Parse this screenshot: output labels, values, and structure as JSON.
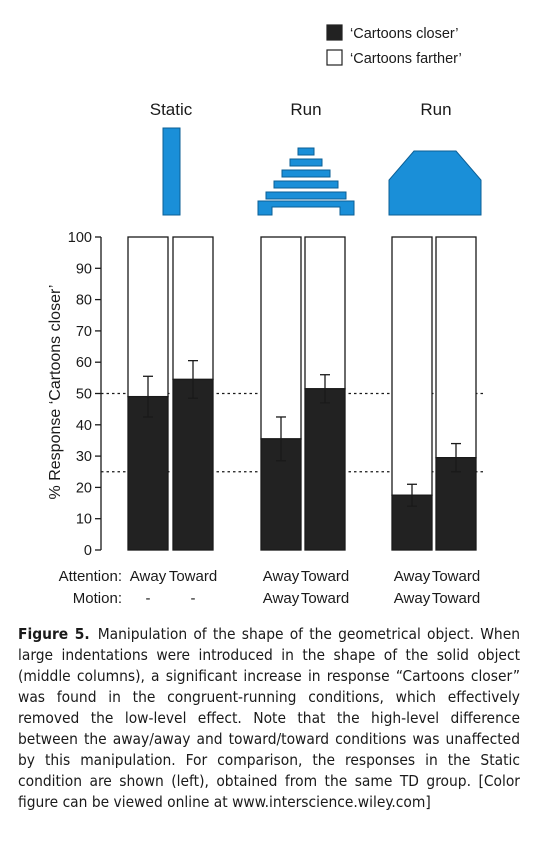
{
  "chart_data": {
    "type": "bar",
    "stacked": true,
    "ylabel": "% Response ‘Cartoons closer’",
    "ylim": [
      0,
      100
    ],
    "yticks": [
      0,
      10,
      20,
      30,
      40,
      50,
      60,
      70,
      80,
      90,
      100
    ],
    "reference_lines": [
      50,
      25
    ],
    "legend": {
      "position": "top-right",
      "entries": [
        {
          "label": "‘Cartoons closer’",
          "color": "#222222"
        },
        {
          "label": "‘Cartoons farther’",
          "color": "#ffffff"
        }
      ]
    },
    "groups": [
      {
        "title": "Static",
        "icon": "static-bar-icon"
      },
      {
        "title": "Run",
        "icon": "indented-shape-icon"
      },
      {
        "title": "Run",
        "icon": "solid-shape-icon"
      }
    ],
    "row_labels": {
      "attention": "Attention:",
      "motion": "Motion:"
    },
    "bars": [
      {
        "group": 0,
        "attention": "Away",
        "motion": "-",
        "closer": 49,
        "error": 6.5
      },
      {
        "group": 0,
        "attention": "Toward",
        "motion": "-",
        "closer": 54.5,
        "error": 6
      },
      {
        "group": 1,
        "attention": "Away",
        "motion": "Away",
        "closer": 35.5,
        "error": 7
      },
      {
        "group": 1,
        "attention": "Toward",
        "motion": "Toward",
        "closer": 51.5,
        "error": 4.5
      },
      {
        "group": 2,
        "attention": "Away",
        "motion": "Away",
        "closer": 17.5,
        "error": 3.5
      },
      {
        "group": 2,
        "attention": "Toward",
        "motion": "Toward",
        "closer": 29.5,
        "error": 4.5
      }
    ],
    "colors": {
      "closer": "#222222",
      "farther": "#ffffff",
      "icon": "#1a8fd8"
    }
  },
  "caption": {
    "label": "Figure 5.",
    "text": "Manipulation of the shape of the geometrical object. When large indentations were introduced in the shape of the solid object (middle columns), a significant increase in response “Cartoons closer” was found in the congruent-running conditions, which effectively removed the low-level effect. Note that the high-level difference between the away/away and toward/toward conditions was unaffected by this manipulation. For comparison, the responses in the Static condition are shown (left), obtained from the same TD group. [Color figure can be viewed online at www.interscience.wiley.com]"
  }
}
